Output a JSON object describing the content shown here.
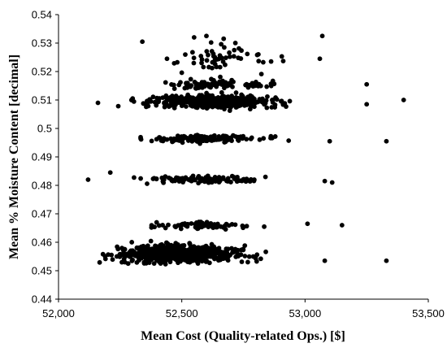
{
  "chart_data": {
    "type": "scatter",
    "title": "",
    "xlabel": "Mean Cost (Quality-related  Ops.) [$]",
    "ylabel": "Mean % Moisture Content [decimal]",
    "xlim": [
      52000,
      53500
    ],
    "ylim": [
      0.44,
      0.54
    ],
    "x_ticks": [
      52000,
      52500,
      53000,
      53500
    ],
    "x_tick_labels": [
      "52,000",
      "52,500",
      "53,000",
      "53,500"
    ],
    "y_ticks": [
      0.44,
      0.45,
      0.46,
      0.47,
      0.48,
      0.49,
      0.5,
      0.51,
      0.52,
      0.53,
      0.54
    ],
    "y_tick_labels": [
      "0.44",
      "0.45",
      "0.46",
      "0.47",
      "0.48",
      "0.49",
      "0.5",
      "0.51",
      "0.52",
      "0.53",
      "0.54"
    ],
    "grid": false,
    "legend": "none",
    "marker_color": "#000000",
    "series": [
      {
        "clusters": [
          {
            "y_center": 0.456,
            "y_spread": 0.0025,
            "x_min": 52080,
            "x_max": 52930,
            "x_peak": 52420,
            "count": 700
          },
          {
            "y_center": 0.466,
            "y_spread": 0.001,
            "x_min": 52220,
            "x_max": 52880,
            "x_peak": 52600,
            "count": 85
          },
          {
            "y_center": 0.482,
            "y_spread": 0.001,
            "x_min": 52200,
            "x_max": 52950,
            "x_peak": 52600,
            "count": 110
          },
          {
            "y_center": 0.4965,
            "y_spread": 0.001,
            "x_min": 52200,
            "x_max": 53000,
            "x_peak": 52600,
            "count": 150
          },
          {
            "y_center": 0.5095,
            "y_spread": 0.0017,
            "x_min": 52160,
            "x_max": 53090,
            "x_peak": 52600,
            "count": 500
          },
          {
            "y_center": 0.5155,
            "y_spread": 0.0012,
            "x_min": 52250,
            "x_max": 53050,
            "x_peak": 52600,
            "count": 90
          },
          {
            "y_center": 0.525,
            "y_spread": 0.005,
            "x_min": 52320,
            "x_max": 53080,
            "x_peak": 52600,
            "count": 55
          }
        ],
        "points": [
          {
            "x": 53400,
            "y": 0.51
          },
          {
            "x": 53250,
            "y": 0.5155
          },
          {
            "x": 53250,
            "y": 0.5085
          },
          {
            "x": 53330,
            "y": 0.4955
          },
          {
            "x": 53330,
            "y": 0.4535
          },
          {
            "x": 53080,
            "y": 0.4535
          },
          {
            "x": 53150,
            "y": 0.466
          },
          {
            "x": 53110,
            "y": 0.481
          },
          {
            "x": 53080,
            "y": 0.4815
          },
          {
            "x": 53070,
            "y": 0.5325
          },
          {
            "x": 52600,
            "y": 0.5325
          },
          {
            "x": 52550,
            "y": 0.532
          },
          {
            "x": 52120,
            "y": 0.482
          },
          {
            "x": 52210,
            "y": 0.4845
          },
          {
            "x": 53010,
            "y": 0.4665
          },
          {
            "x": 53100,
            "y": 0.4955
          },
          {
            "x": 52440,
            "y": 0.5245
          },
          {
            "x": 52160,
            "y": 0.509
          },
          {
            "x": 52340,
            "y": 0.5305
          },
          {
            "x": 53060,
            "y": 0.5245
          }
        ]
      }
    ]
  }
}
